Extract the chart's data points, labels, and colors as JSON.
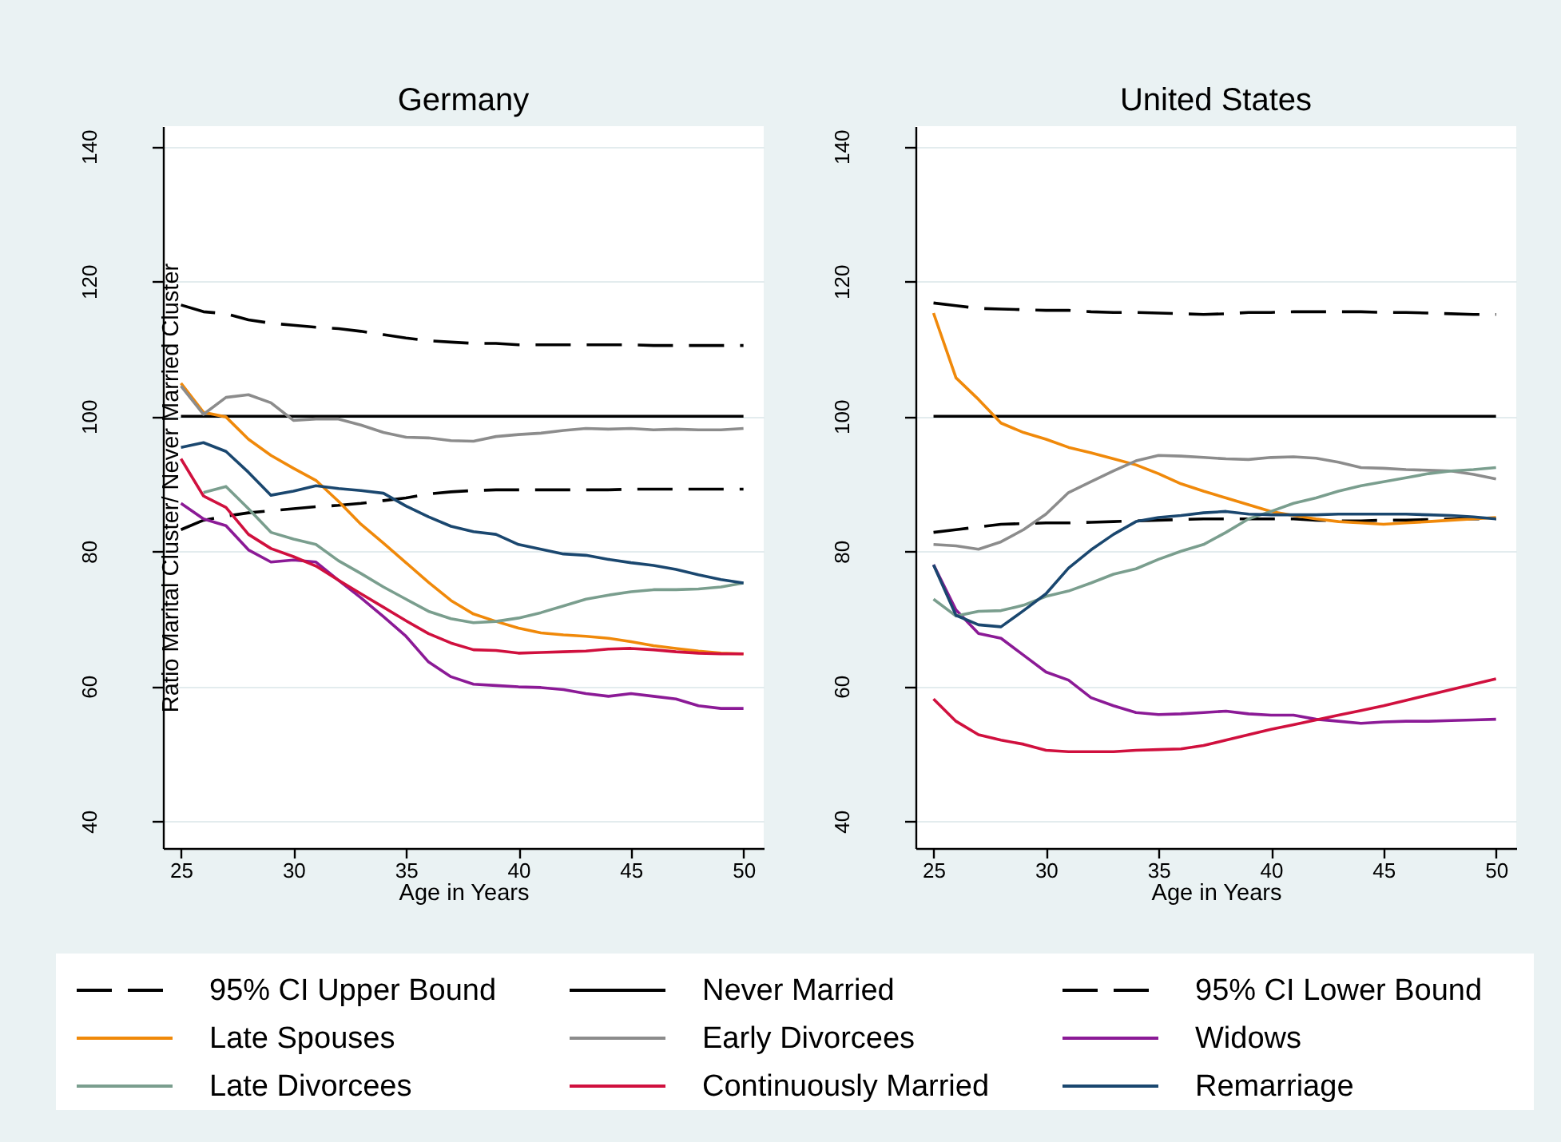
{
  "chart_data": [
    {
      "type": "line",
      "title": "Germany",
      "xlabel": "Age in Years",
      "ylabel": "Ratio Marital Cluster/ Never Married Cluster",
      "x": [
        25,
        26,
        27,
        28,
        29,
        30,
        31,
        32,
        33,
        34,
        35,
        36,
        37,
        38,
        39,
        40,
        41,
        42,
        43,
        44,
        45,
        46,
        47,
        48,
        49,
        50
      ],
      "xlim": [
        24.2,
        50.9
      ],
      "xticks": [
        25,
        30,
        35,
        40,
        45,
        50
      ],
      "ylim": [
        36,
        143
      ],
      "yticks": [
        40,
        60,
        80,
        100,
        120,
        140
      ],
      "grid": "y",
      "legend": "bottom",
      "line_style": "solid",
      "series": [
        {
          "name": "95% CI Upper Bound",
          "color": "#000000",
          "line_style": "dashed",
          "values": [
            116.5,
            115.5,
            115.2,
            114.3,
            113.8,
            113.5,
            113.2,
            113.0,
            112.6,
            112.1,
            111.6,
            111.2,
            111.0,
            110.8,
            110.8,
            110.6,
            110.6,
            110.6,
            110.6,
            110.6,
            110.6,
            110.5,
            110.5,
            110.5,
            110.5,
            110.5
          ]
        },
        {
          "name": "Never Married",
          "color": "#000000",
          "values": [
            100,
            100,
            100,
            100,
            100,
            100,
            100,
            100,
            100,
            100,
            100,
            100,
            100,
            100,
            100,
            100,
            100,
            100,
            100,
            100,
            100,
            100,
            100,
            100,
            100,
            100
          ]
        },
        {
          "name": "95% CI Lower Bound",
          "color": "#000000",
          "line_style": "dashed",
          "values": [
            83.2,
            84.6,
            85.2,
            85.7,
            86.0,
            86.3,
            86.6,
            86.8,
            87.1,
            87.5,
            87.9,
            88.5,
            88.8,
            89.0,
            89.1,
            89.1,
            89.1,
            89.1,
            89.1,
            89.1,
            89.2,
            89.2,
            89.2,
            89.2,
            89.2,
            89.2
          ]
        },
        {
          "name": "Late Spouses",
          "color": "#f0890a",
          "values": [
            104.9,
            100.6,
            99.9,
            96.6,
            94.2,
            92.3,
            90.5,
            87.4,
            84.0,
            81.2,
            78.3,
            75.4,
            72.7,
            70.7,
            69.6,
            68.6,
            67.9,
            67.6,
            67.4,
            67.1,
            66.6,
            66.0,
            65.6,
            65.2,
            64.9,
            64.8
          ]
        },
        {
          "name": "Early Divorcees",
          "color": "#8c8c8c",
          "values": [
            104.5,
            100.3,
            102.8,
            103.2,
            102.0,
            99.4,
            99.6,
            99.6,
            98.7,
            97.6,
            96.9,
            96.8,
            96.4,
            96.3,
            97.0,
            97.3,
            97.5,
            97.9,
            98.2,
            98.1,
            98.2,
            98.0,
            98.1,
            98.0,
            98.0,
            98.2
          ]
        },
        {
          "name": "Widows",
          "color": "#8b1a96",
          "values": [
            87.1,
            84.8,
            83.8,
            80.2,
            78.4,
            78.7,
            78.4,
            75.7,
            73.1,
            70.3,
            67.4,
            63.6,
            61.4,
            60.3,
            60.1,
            59.9,
            59.8,
            59.5,
            58.9,
            58.5,
            58.9,
            58.5,
            58.1,
            57.1,
            56.7,
            56.7
          ]
        },
        {
          "name": "Late Divorcees",
          "color": "#7a9e8e",
          "values": [
            null,
            88.7,
            89.6,
            86.3,
            82.8,
            81.8,
            81.0,
            78.6,
            76.7,
            74.7,
            72.9,
            71.1,
            70.0,
            69.4,
            69.6,
            70.1,
            70.9,
            71.9,
            72.9,
            73.5,
            74.0,
            74.3,
            74.3,
            74.4,
            74.7,
            75.3
          ]
        },
        {
          "name": "Continuously Married",
          "color": "#d0103e",
          "values": [
            93.7,
            88.2,
            86.5,
            82.5,
            80.4,
            79.2,
            77.8,
            75.7,
            73.7,
            71.7,
            69.7,
            67.8,
            66.4,
            65.4,
            65.3,
            64.9,
            65.0,
            65.1,
            65.2,
            65.5,
            65.6,
            65.4,
            65.1,
            64.9,
            64.8,
            64.8
          ]
        },
        {
          "name": "Remarriage",
          "color": "#1a476f",
          "values": [
            95.4,
            96.1,
            94.8,
            91.7,
            88.3,
            88.9,
            89.7,
            89.3,
            89.0,
            88.6,
            86.7,
            85.1,
            83.7,
            82.9,
            82.5,
            81.0,
            80.3,
            79.6,
            79.4,
            78.8,
            78.3,
            77.9,
            77.3,
            76.5,
            75.8,
            75.3
          ]
        }
      ]
    },
    {
      "type": "line",
      "title": "United States",
      "xlabel": "Age in Years",
      "x": [
        25,
        26,
        27,
        28,
        29,
        30,
        31,
        32,
        33,
        34,
        35,
        36,
        37,
        38,
        39,
        40,
        41,
        42,
        43,
        44,
        45,
        46,
        47,
        48,
        49,
        50
      ],
      "xlim": [
        24.2,
        50.9
      ],
      "xticks": [
        25,
        30,
        35,
        40,
        45,
        50
      ],
      "ylim": [
        36,
        143
      ],
      "yticks": [
        40,
        60,
        80,
        100,
        120,
        140
      ],
      "grid": "y",
      "legend": "bottom",
      "line_style": "solid",
      "series": [
        {
          "name": "95% CI Upper Bound",
          "color": "#000000",
          "line_style": "dashed",
          "values": [
            116.8,
            116.4,
            116.0,
            115.9,
            115.8,
            115.7,
            115.7,
            115.5,
            115.4,
            115.4,
            115.3,
            115.2,
            115.1,
            115.2,
            115.4,
            115.4,
            115.5,
            115.5,
            115.5,
            115.5,
            115.4,
            115.4,
            115.3,
            115.2,
            115.1,
            115.1
          ]
        },
        {
          "name": "Never Married",
          "color": "#000000",
          "values": [
            100,
            100,
            100,
            100,
            100,
            100,
            100,
            100,
            100,
            100,
            100,
            100,
            100,
            100,
            100,
            100,
            100,
            100,
            100,
            100,
            100,
            100,
            100,
            100,
            100,
            100
          ]
        },
        {
          "name": "95% CI Lower Bound",
          "color": "#000000",
          "line_style": "dashed",
          "values": [
            82.8,
            83.2,
            83.6,
            84.0,
            84.1,
            84.2,
            84.2,
            84.3,
            84.4,
            84.5,
            84.6,
            84.7,
            84.8,
            84.8,
            84.8,
            84.8,
            84.8,
            84.6,
            84.5,
            84.5,
            84.6,
            84.6,
            84.7,
            84.8,
            84.8,
            84.8
          ]
        },
        {
          "name": "Late Spouses",
          "color": "#f0890a",
          "values": [
            115.3,
            105.7,
            102.5,
            99.0,
            97.6,
            96.6,
            95.4,
            94.6,
            93.7,
            92.8,
            91.5,
            90.0,
            88.9,
            87.9,
            86.9,
            85.9,
            85.3,
            84.8,
            84.4,
            84.2,
            84.0,
            84.2,
            84.4,
            84.6,
            84.8,
            85.0
          ]
        },
        {
          "name": "Early Divorcees",
          "color": "#8c8c8c",
          "values": [
            81.0,
            80.8,
            80.3,
            81.4,
            83.2,
            85.5,
            88.7,
            90.3,
            91.9,
            93.4,
            94.2,
            94.1,
            93.9,
            93.7,
            93.6,
            93.9,
            94.0,
            93.8,
            93.2,
            92.4,
            92.3,
            92.1,
            92.0,
            91.9,
            91.4,
            90.7
          ]
        },
        {
          "name": "Widows",
          "color": "#8b1a96",
          "values": [
            78.0,
            71.3,
            67.8,
            67.1,
            64.6,
            62.1,
            60.9,
            58.3,
            57.1,
            56.1,
            55.8,
            55.9,
            56.1,
            56.3,
            55.9,
            55.7,
            55.7,
            55.1,
            54.8,
            54.5,
            54.7,
            54.8,
            54.8,
            54.9,
            55.0,
            55.1
          ]
        },
        {
          "name": "Late Divorcees",
          "color": "#7a9e8e",
          "values": [
            72.9,
            70.4,
            71.1,
            71.2,
            72.0,
            73.3,
            74.1,
            75.3,
            76.6,
            77.4,
            78.8,
            80.0,
            81.0,
            82.8,
            84.8,
            85.9,
            87.1,
            87.9,
            88.9,
            89.7,
            90.3,
            90.9,
            91.5,
            91.9,
            92.1,
            92.4
          ]
        },
        {
          "name": "Continuously Married",
          "color": "#d0103e",
          "values": [
            58.1,
            54.8,
            52.8,
            52.0,
            51.4,
            50.5,
            50.3,
            50.3,
            50.3,
            50.5,
            50.6,
            50.7,
            51.2,
            52.0,
            52.8,
            53.6,
            54.3,
            55.0,
            55.7,
            56.4,
            57.1,
            57.9,
            58.7,
            59.5,
            60.3,
            61.1
          ]
        },
        {
          "name": "Remarriage",
          "color": "#1a476f",
          "values": [
            78.0,
            70.5,
            69.1,
            68.8,
            71.2,
            73.7,
            77.5,
            80.2,
            82.5,
            84.4,
            85.0,
            85.3,
            85.7,
            85.9,
            85.5,
            85.4,
            85.4,
            85.4,
            85.5,
            85.5,
            85.5,
            85.5,
            85.4,
            85.3,
            85.1,
            84.8
          ]
        }
      ]
    }
  ]
}
